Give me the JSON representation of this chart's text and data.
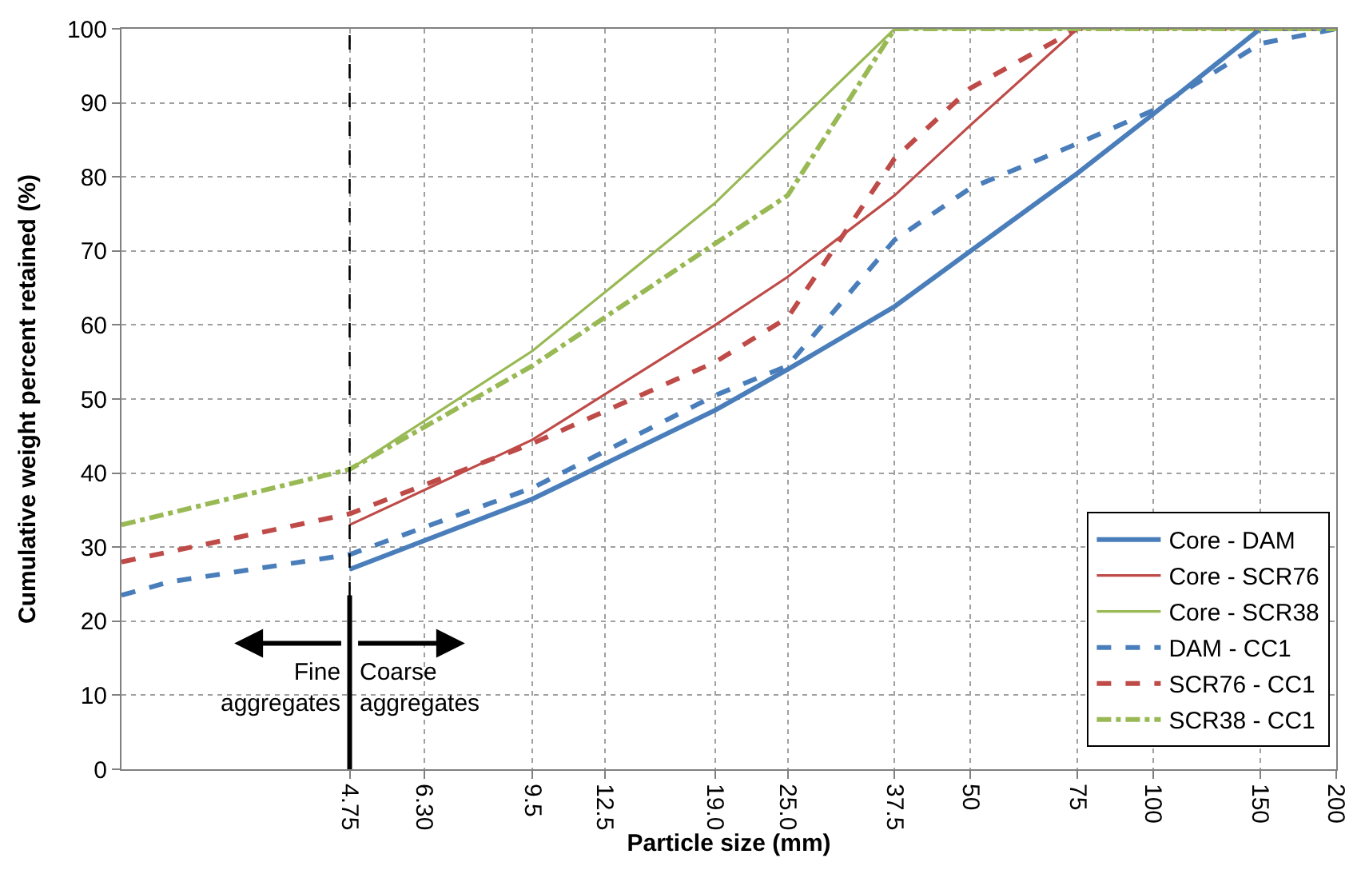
{
  "chart_data": {
    "type": "line",
    "xlabel": "Particle size (mm)",
    "ylabel": "Cumulative weight percent retained (%)",
    "log": "x",
    "xlim": [
      2,
      200
    ],
    "ylim": [
      0,
      100
    ],
    "xticks": [
      4.75,
      {
        "value": 6.3,
        "label": "6.30"
      },
      9.5,
      12.5,
      {
        "value": 19,
        "label": "19.0"
      },
      {
        "value": 25,
        "label": "25.0"
      },
      37.5,
      50,
      75,
      100,
      150,
      200
    ],
    "yticks": [
      0,
      10,
      20,
      30,
      40,
      50,
      60,
      70,
      80,
      90,
      100
    ],
    "grid": true,
    "legend": "bottom right",
    "series": [
      {
        "name": "Core - DAM",
        "color": "#4a7ebb",
        "line_style": "solid",
        "x": [
          4.75,
          9.5,
          19,
          25,
          37.5,
          50,
          75,
          100,
          150,
          200
        ],
        "values": [
          27,
          36.5,
          48.5,
          54,
          62.5,
          70,
          80.5,
          88.5,
          100,
          100
        ]
      },
      {
        "name": "Core - SCR76",
        "color": "#be4b48",
        "line_style": "solid",
        "x": [
          4.75,
          9.5,
          19,
          25,
          37.5,
          50,
          75,
          100,
          150,
          200
        ],
        "values": [
          33,
          44.5,
          60,
          66.5,
          77.5,
          87,
          100,
          100,
          100,
          100
        ]
      },
      {
        "name": "Core - SCR38",
        "color": "#98b954",
        "line_style": "solid",
        "x": [
          4.75,
          9.5,
          19,
          25,
          37.5,
          50,
          75,
          100,
          150,
          200
        ],
        "values": [
          40.5,
          56.5,
          76.5,
          86,
          100,
          100,
          100,
          100,
          100,
          100
        ]
      },
      {
        "name": "DAM - CC1",
        "color": "#4a7ebb",
        "line_style": "dashed",
        "x": [
          2,
          2.4,
          4.75,
          9.5,
          19,
          25,
          37.5,
          50,
          75,
          100,
          150,
          200
        ],
        "values": [
          23.5,
          25.3,
          29,
          38,
          50.5,
          54.5,
          71.5,
          78.5,
          84.5,
          89,
          98,
          100
        ]
      },
      {
        "name": "SCR76 - CC1",
        "color": "#be4b48",
        "line_style": "dashed",
        "x": [
          2,
          4.75,
          9.5,
          19,
          25,
          37.5,
          50,
          75,
          100,
          150,
          200
        ],
        "values": [
          28,
          34.5,
          44,
          55,
          61,
          82.5,
          92,
          100,
          100,
          100,
          100
        ]
      },
      {
        "name": "SCR38 - CC1",
        "color": "#98b954",
        "line_style": "dashdot",
        "x": [
          2,
          4.75,
          9.5,
          19,
          25,
          37.5,
          50,
          75,
          100,
          150,
          200
        ],
        "values": [
          33,
          40.5,
          54.5,
          71,
          77.5,
          100,
          100,
          100,
          100,
          100,
          100
        ]
      }
    ],
    "ref_lines": [
      {
        "axis": "x",
        "value": 4.75,
        "color": "#000000",
        "line_style": "dashed"
      }
    ],
    "annotations": [
      {
        "text": "Fine\naggregates",
        "x": 4.75,
        "y": 11
      },
      {
        "text": "Coarse\naggregates",
        "x": 4.75,
        "y": 11
      }
    ]
  }
}
